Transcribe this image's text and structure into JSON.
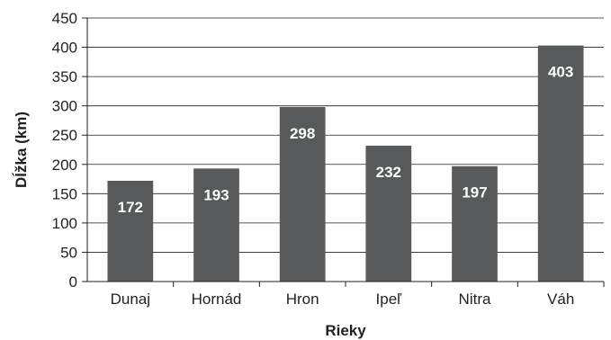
{
  "chart_data": {
    "type": "bar",
    "categories": [
      "Dunaj",
      "Hornád",
      "Hron",
      "Ipeľ",
      "Nitra",
      "Váh"
    ],
    "values": [
      172,
      193,
      298,
      232,
      197,
      403
    ],
    "xlabel": "Rieky",
    "ylabel": "Dĺžka (km)",
    "ylim": [
      0,
      450
    ],
    "yticks": [
      0,
      50,
      100,
      150,
      200,
      250,
      300,
      350,
      400,
      450
    ],
    "grid": true,
    "legend": "none",
    "bar_color": "#58595b",
    "data_labels": true
  }
}
